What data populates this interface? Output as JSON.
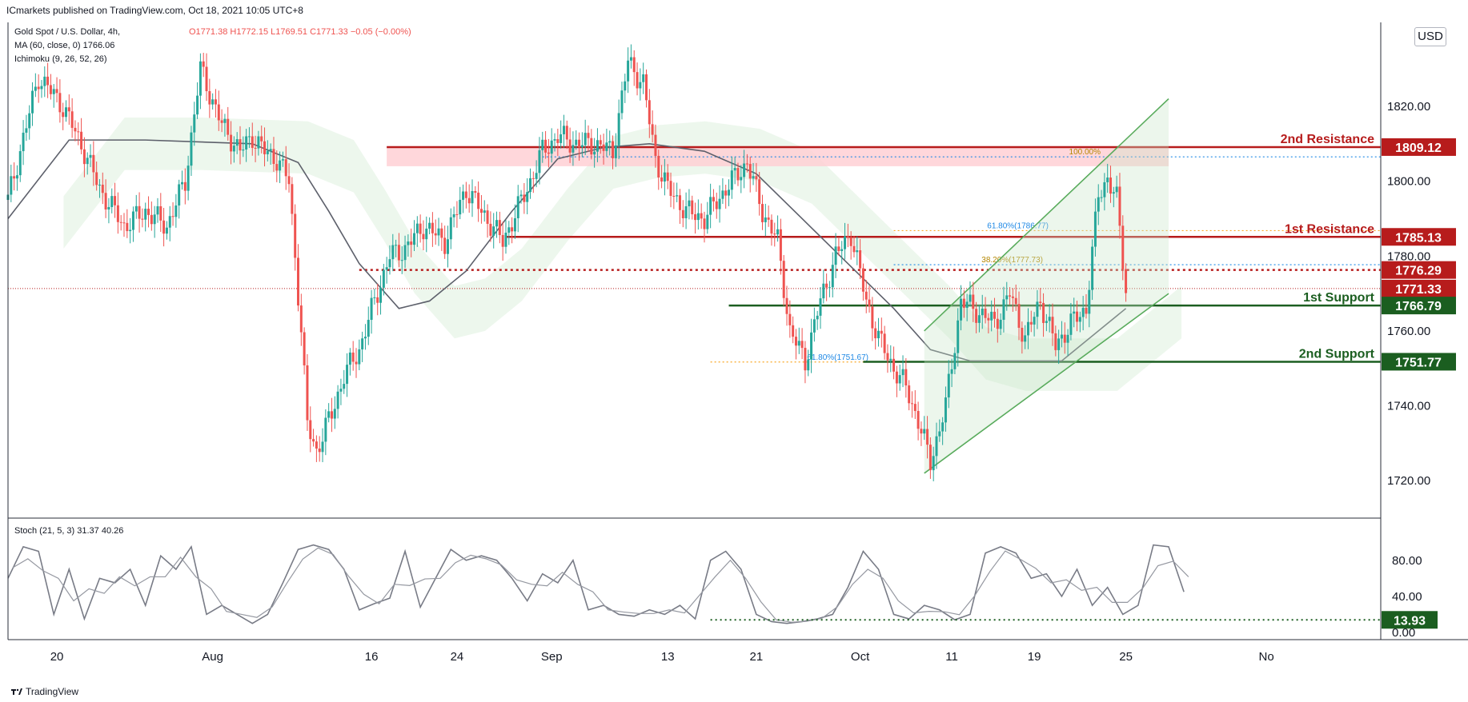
{
  "header": {
    "published": "ICmarkets published on TradingView.com, Oct 18, 2021 10:05 UTC+8",
    "symbol": "Gold Spot / U.S. Dollar, 4h,",
    "ohlc": "O1771.38  H1772.15  L1769.51  C1771.33  −0.05 (−0.00%)",
    "ma": "MA (60, close, 0)  1766.06",
    "ichimoku": "Ichimoku (9, 26, 52, 26)",
    "currency_button": "USD",
    "stoch_label": "Stoch (21, 5, 3)  31.37  40.26"
  },
  "footer": {
    "brand": "TradingView"
  },
  "colors": {
    "resistance": "#b71c1c",
    "support": "#1b5e20",
    "price_line": "#5d606b",
    "candle_up": "#26a69a",
    "candle_down": "#ef5350",
    "channel": "#43a047",
    "stoch": "#787b86"
  },
  "chart_data": [
    {
      "type": "candlestick",
      "title": "Gold Spot / U.S. Dollar, 4h",
      "x_ticks": [
        "20",
        "Aug",
        "16",
        "24",
        "Sep",
        "13",
        "21",
        "Oct",
        "11",
        "19",
        "25",
        "No"
      ],
      "y_ticks": [
        "1820.00",
        "1800.00",
        "1780.00",
        "1760.00",
        "1740.00",
        "1720.00"
      ],
      "ylim": [
        1710,
        1842
      ],
      "last_price": 1771.33,
      "levels": [
        {
          "name": "2nd Resistance",
          "value": 1809.12,
          "color": "#b71c1c"
        },
        {
          "name": "1st Resistance",
          "value": 1785.13,
          "color": "#b71c1c"
        },
        {
          "name": "",
          "value": 1776.29,
          "color": "#b71c1c",
          "style": "dotted"
        },
        {
          "name": "",
          "value": 1771.33,
          "color": "#b71c1c",
          "style": "price"
        },
        {
          "name": "1st Support",
          "value": 1766.79,
          "color": "#1b5e20"
        },
        {
          "name": "2nd Support",
          "value": 1751.77,
          "color": "#1b5e20"
        }
      ],
      "fib_labels": [
        "100.00%",
        "61.80%(1786.77)",
        "38.20%(1777.73)",
        "61.80%(1751.67)"
      ],
      "series_path": [
        [
          0,
          1795
        ],
        [
          10,
          1828
        ],
        [
          18,
          1820
        ],
        [
          25,
          1808
        ],
        [
          30,
          1798
        ],
        [
          38,
          1788
        ],
        [
          45,
          1792
        ],
        [
          52,
          1788
        ],
        [
          58,
          1800
        ],
        [
          63,
          1830
        ],
        [
          70,
          1815
        ],
        [
          76,
          1808
        ],
        [
          80,
          1812
        ],
        [
          84,
          1808
        ],
        [
          88,
          1806
        ],
        [
          92,
          1800
        ],
        [
          96,
          1760
        ],
        [
          98,
          1735
        ],
        [
          101,
          1728
        ],
        [
          106,
          1738
        ],
        [
          110,
          1748
        ],
        [
          115,
          1755
        ],
        [
          120,
          1768
        ],
        [
          125,
          1780
        ],
        [
          130,
          1782
        ],
        [
          136,
          1788
        ],
        [
          143,
          1784
        ],
        [
          150,
          1798
        ],
        [
          155,
          1792
        ],
        [
          162,
          1784
        ],
        [
          170,
          1798
        ],
        [
          175,
          1808
        ],
        [
          180,
          1812
        ],
        [
          186,
          1810
        ],
        [
          192,
          1810
        ],
        [
          198,
          1808
        ],
        [
          203,
          1832
        ],
        [
          208,
          1826
        ],
        [
          212,
          1806
        ],
        [
          216,
          1798
        ],
        [
          222,
          1792
        ],
        [
          228,
          1790
        ],
        [
          235,
          1798
        ],
        [
          242,
          1805
        ],
        [
          247,
          1792
        ],
        [
          252,
          1784
        ],
        [
          256,
          1760
        ],
        [
          261,
          1752
        ],
        [
          266,
          1768
        ],
        [
          271,
          1780
        ],
        [
          276,
          1786
        ],
        [
          281,
          1768
        ],
        [
          285,
          1758
        ],
        [
          290,
          1750
        ],
        [
          294,
          1745
        ],
        [
          298,
          1736
        ],
        [
          302,
          1725
        ],
        [
          307,
          1740
        ],
        [
          312,
          1768
        ],
        [
          318,
          1765
        ],
        [
          323,
          1762
        ],
        [
          328,
          1770
        ],
        [
          333,
          1758
        ],
        [
          338,
          1768
        ],
        [
          343,
          1756
        ],
        [
          348,
          1762
        ],
        [
          353,
          1766
        ],
        [
          357,
          1796
        ],
        [
          360,
          1801
        ],
        [
          363,
          1795
        ],
        [
          366,
          1771
        ]
      ],
      "ma60_path": [
        [
          0,
          1790
        ],
        [
          20,
          1811
        ],
        [
          45,
          1811
        ],
        [
          80,
          1810
        ],
        [
          95,
          1805
        ],
        [
          105,
          1792
        ],
        [
          115,
          1778
        ],
        [
          128,
          1766
        ],
        [
          138,
          1768
        ],
        [
          150,
          1776
        ],
        [
          165,
          1792
        ],
        [
          180,
          1806
        ],
        [
          195,
          1809
        ],
        [
          210,
          1810
        ],
        [
          228,
          1808
        ],
        [
          245,
          1802
        ],
        [
          260,
          1790
        ],
        [
          275,
          1778
        ],
        [
          290,
          1766
        ],
        [
          302,
          1755
        ],
        [
          315,
          1752
        ],
        [
          330,
          1752
        ],
        [
          345,
          1752
        ],
        [
          360,
          1762
        ],
        [
          366,
          1766
        ]
      ],
      "channel": {
        "lower": [
          [
            300,
            1722
          ],
          [
            380,
            1770
          ]
        ],
        "upper": [
          [
            300,
            1760
          ],
          [
            380,
            1822
          ]
        ]
      }
    },
    {
      "type": "line",
      "title": "Stoch (21, 5, 3)",
      "y_ticks": [
        "80.00",
        "40.00",
        "0.00"
      ],
      "ylim": [
        -8,
        125
      ],
      "last_value": 13.93,
      "k_path": [
        [
          0,
          60
        ],
        [
          5,
          95
        ],
        [
          10,
          90
        ],
        [
          15,
          20
        ],
        [
          20,
          70
        ],
        [
          25,
          15
        ],
        [
          30,
          60
        ],
        [
          35,
          55
        ],
        [
          40,
          70
        ],
        [
          45,
          30
        ],
        [
          50,
          85
        ],
        [
          55,
          70
        ],
        [
          60,
          95
        ],
        [
          65,
          20
        ],
        [
          70,
          30
        ],
        [
          75,
          20
        ],
        [
          80,
          10
        ],
        [
          85,
          20
        ],
        [
          90,
          55
        ],
        [
          95,
          92
        ],
        [
          100,
          97
        ],
        [
          105,
          92
        ],
        [
          110,
          70
        ],
        [
          115,
          25
        ],
        [
          120,
          32
        ],
        [
          125,
          38
        ],
        [
          130,
          90
        ],
        [
          135,
          28
        ],
        [
          140,
          60
        ],
        [
          145,
          92
        ],
        [
          150,
          80
        ],
        [
          155,
          85
        ],
        [
          160,
          80
        ],
        [
          165,
          60
        ],
        [
          170,
          35
        ],
        [
          175,
          65
        ],
        [
          180,
          55
        ],
        [
          185,
          80
        ],
        [
          190,
          25
        ],
        [
          195,
          30
        ],
        [
          200,
          20
        ],
        [
          205,
          18
        ],
        [
          210,
          25
        ],
        [
          215,
          20
        ],
        [
          220,
          30
        ],
        [
          225,
          15
        ],
        [
          230,
          80
        ],
        [
          235,
          90
        ],
        [
          240,
          70
        ],
        [
          245,
          20
        ],
        [
          250,
          12
        ],
        [
          255,
          10
        ],
        [
          260,
          12
        ],
        [
          265,
          15
        ],
        [
          270,
          20
        ],
        [
          275,
          50
        ],
        [
          280,
          90
        ],
        [
          285,
          70
        ],
        [
          290,
          20
        ],
        [
          295,
          15
        ],
        [
          300,
          30
        ],
        [
          305,
          25
        ],
        [
          310,
          14
        ],
        [
          315,
          20
        ],
        [
          320,
          88
        ],
        [
          325,
          95
        ],
        [
          330,
          88
        ],
        [
          335,
          60
        ],
        [
          340,
          65
        ],
        [
          345,
          40
        ],
        [
          350,
          70
        ],
        [
          355,
          30
        ],
        [
          360,
          50
        ],
        [
          365,
          20
        ],
        [
          370,
          30
        ],
        [
          375,
          97
        ],
        [
          380,
          95
        ],
        [
          385,
          45
        ]
      ]
    }
  ]
}
